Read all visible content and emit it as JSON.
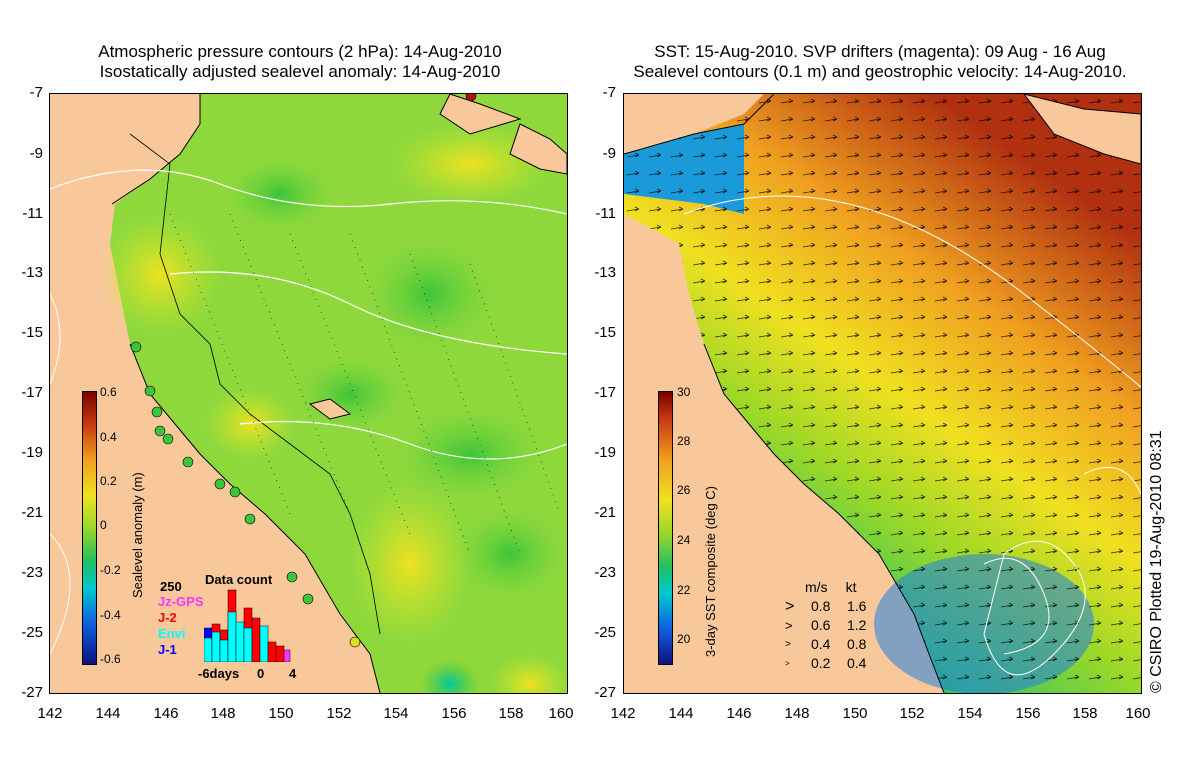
{
  "colors": {
    "land": "#f9c89a",
    "frame": "#000000"
  },
  "left_panel": {
    "title_line1": "Atmospheric pressure contours (2 hPa): 14-Aug-2010",
    "title_line2": "Isostatically adjusted sealevel anomaly: 14-Aug-2010",
    "y_ticks": [
      "-7",
      "-9",
      "-11",
      "-13",
      "-15",
      "-17",
      "-19",
      "-21",
      "-23",
      "-25",
      "-27"
    ],
    "x_ticks": [
      "142",
      "144",
      "146",
      "148",
      "150",
      "152",
      "154",
      "156",
      "158",
      "160"
    ],
    "colorbar": {
      "label": "Sealevel anomaly (m)",
      "ticks": [
        "0.6",
        "0.4",
        "0.2",
        "0",
        "-0.2",
        "-0.4",
        "-0.6"
      ],
      "range": [
        -0.6,
        0.6
      ]
    },
    "data_count": {
      "title": "Data count",
      "max_label": "250",
      "series": [
        {
          "name": "Jz-GPS",
          "color": "#ff33ff"
        },
        {
          "name": "J-2",
          "color": "#ff0000"
        },
        {
          "name": "Envi",
          "color": "#00ffff"
        },
        {
          "name": "J-1",
          "color": "#0000ff"
        }
      ],
      "x_labels": [
        "-6days",
        "0",
        "4"
      ]
    }
  },
  "right_panel": {
    "title_line1": "SST: 15-Aug-2010. SVP drifters (magenta): 09 Aug - 16 Aug",
    "title_line2": "Sealevel contours (0.1 m) and geostrophic velocity: 14-Aug-2010.",
    "y_ticks": [
      "-7",
      "-9",
      "-11",
      "-13",
      "-15",
      "-17",
      "-19",
      "-21",
      "-23",
      "-25",
      "-27"
    ],
    "x_ticks": [
      "142",
      "144",
      "146",
      "148",
      "150",
      "152",
      "154",
      "156",
      "158",
      "160"
    ],
    "colorbar": {
      "label": "3-day SST composite (deg C)",
      "ticks": [
        "30",
        "28",
        "26",
        "24",
        "22",
        "20"
      ],
      "range": [
        19,
        30
      ]
    },
    "velocity_legend": {
      "header_ms": "m/s",
      "header_kt": "kt",
      "rows": [
        {
          "ms": "0.8",
          "kt": "1.6"
        },
        {
          "ms": "0.6",
          "kt": "1.2"
        },
        {
          "ms": "0.4",
          "kt": "0.8"
        },
        {
          "ms": "0.2",
          "kt": "0.4"
        }
      ]
    }
  },
  "credit": "© CSIRO Plotted 19-Aug-2010 08:31"
}
